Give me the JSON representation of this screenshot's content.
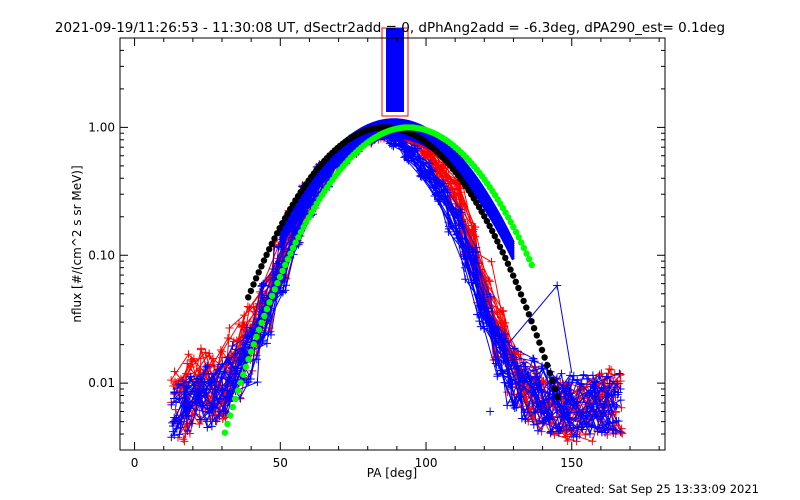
{
  "chart_data": {
    "type": "line",
    "title": "2021-09-19/11:26:53 - 11:30:08 UT, dSectr2add = 0, dPhAng2add = -6.3deg, dPA290_est=  0.1deg",
    "xlabel": "PA [deg]",
    "ylabel": "nflux [#/(cm^2 s sr MeV)]",
    "xlim": [
      -5,
      182
    ],
    "ylim": [
      0.003,
      5.0
    ],
    "yscale": "log",
    "grid": false,
    "x_ticks": [
      0,
      50,
      100,
      150
    ],
    "x_tick_labels": [
      "0",
      "50",
      "100",
      "150"
    ],
    "y_ticks": [
      0.01,
      0.1,
      1.0
    ],
    "y_tick_labels": [
      "0.01",
      "0.10",
      "1.00"
    ],
    "footer": "Created: Sat Sep 25 13:33:09 2021",
    "colors": {
      "red_series": "#ff0000",
      "blue_series": "#0000ff",
      "black_fit": "#000000",
      "green_fit": "#00ff00",
      "axes": "#000000"
    },
    "series": [
      {
        "color": "red",
        "marker": "plus",
        "x": [
          15,
          20,
          25,
          30,
          35,
          40,
          45,
          50,
          55,
          60,
          65,
          70,
          75,
          80,
          85,
          90,
          95,
          100,
          105,
          110,
          115,
          120,
          125,
          130,
          135,
          140,
          145,
          150,
          155,
          160,
          165
        ],
        "y_low": [
          0.0035,
          0.004,
          0.0045,
          0.005,
          0.007,
          0.012,
          0.025,
          0.06,
          0.12,
          0.22,
          0.36,
          0.5,
          0.62,
          0.72,
          0.8,
          0.84,
          0.78,
          0.6,
          0.38,
          0.22,
          0.1,
          0.04,
          0.015,
          0.008,
          0.005,
          0.004,
          0.0035,
          0.0035,
          0.0035,
          0.0038,
          0.004
        ],
        "y_high": [
          0.014,
          0.017,
          0.02,
          0.024,
          0.03,
          0.042,
          0.07,
          0.13,
          0.23,
          0.36,
          0.52,
          0.68,
          0.8,
          0.9,
          0.95,
          0.9,
          0.86,
          0.75,
          0.56,
          0.38,
          0.2,
          0.09,
          0.04,
          0.02,
          0.014,
          0.012,
          0.011,
          0.01,
          0.011,
          0.012,
          0.013
        ]
      },
      {
        "color": "blue",
        "marker": "plus",
        "x": [
          15,
          20,
          25,
          30,
          35,
          40,
          45,
          50,
          55,
          60,
          65,
          70,
          75,
          80,
          85,
          90,
          95,
          100,
          105,
          110,
          115,
          120,
          125,
          130,
          135,
          140,
          145,
          150,
          155,
          160,
          165
        ],
        "y_low": [
          0.0035,
          0.004,
          0.0045,
          0.005,
          0.006,
          0.01,
          0.02,
          0.045,
          0.1,
          0.2,
          0.34,
          0.5,
          0.64,
          0.76,
          0.84,
          0.7,
          0.55,
          0.4,
          0.26,
          0.13,
          0.06,
          0.025,
          0.01,
          0.006,
          0.0045,
          0.0042,
          0.004,
          0.0038,
          0.0038,
          0.004,
          0.004
        ],
        "y_high": [
          0.011,
          0.012,
          0.014,
          0.016,
          0.02,
          0.03,
          0.06,
          0.12,
          0.22,
          0.36,
          0.52,
          0.68,
          0.82,
          0.92,
          0.98,
          0.88,
          0.72,
          0.55,
          0.38,
          0.23,
          0.12,
          0.05,
          0.028,
          0.02,
          0.016,
          0.014,
          0.013,
          0.012,
          0.012,
          0.012,
          0.012
        ]
      },
      {
        "color": "black",
        "marker": "dot",
        "fit": "gaussian",
        "peak_x": 86,
        "peak_y": 1.0,
        "sigma": 19,
        "x_range": [
          39,
          146
        ]
      },
      {
        "color": "green",
        "marker": "dot",
        "fit": "gaussian",
        "peak_x": 94,
        "peak_y": 1.0,
        "sigma": 19,
        "x_range": [
          31,
          137
        ]
      },
      {
        "color": "blue",
        "marker": "plus",
        "outlier_points": [
          {
            "x": 145,
            "y": 0.058
          },
          {
            "x": 122,
            "y": 0.006
          }
        ]
      }
    ]
  }
}
